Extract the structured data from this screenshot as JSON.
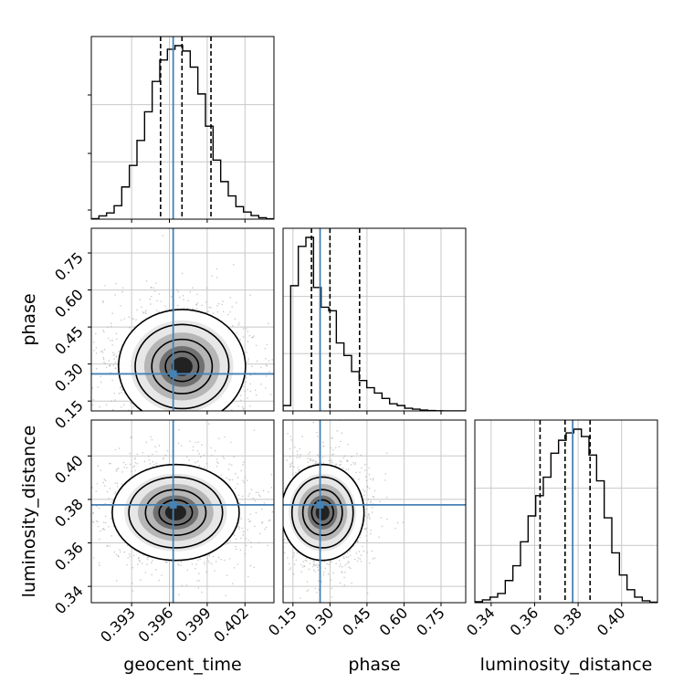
{
  "chart_data": {
    "type": "corner",
    "parameters": [
      "geocent_time",
      "phase",
      "luminosity_distance"
    ],
    "truths": {
      "geocent_time": 0.3963,
      "phase": 0.26,
      "luminosity_distance": 0.3775
    },
    "truth_color": "#4682b4",
    "ranges": {
      "geocent_time": [
        0.3898,
        0.4043
      ],
      "phase": [
        0.11,
        0.85
      ],
      "luminosity_distance": [
        0.3325,
        0.4165
      ]
    },
    "ticks": {
      "geocent_time": [
        0.393,
        0.396,
        0.399,
        0.402
      ],
      "phase": [
        0.15,
        0.3,
        0.45,
        0.6,
        0.75
      ],
      "luminosity_distance": [
        0.34,
        0.36,
        0.38,
        0.4
      ]
    },
    "tick_labels": {
      "geocent_time": [
        "0.393",
        "0.396",
        "0.399",
        "0.402"
      ],
      "phase": [
        "0.15",
        "0.30",
        "0.45",
        "0.60",
        "0.75"
      ],
      "luminosity_distance": [
        "0.34",
        "0.36",
        "0.38",
        "0.40"
      ]
    },
    "xlabels": [
      "geocent_time",
      "phase",
      "luminosity_distance"
    ],
    "ylabels": [
      "",
      "phase",
      "luminosity_distance"
    ],
    "quantiles": {
      "geocent_time": [
        0.3953,
        0.397,
        0.3993
      ],
      "phase": [
        0.225,
        0.3,
        0.42
      ],
      "luminosity_distance": [
        0.3625,
        0.374,
        0.3855
      ]
    },
    "marginals": {
      "geocent_time": [
        0.3,
        1.8,
        3.5,
        7.5,
        18,
        30,
        44,
        60,
        77,
        89,
        95,
        97,
        94,
        85,
        70,
        52,
        33,
        21,
        13,
        7,
        4,
        2,
        0.8,
        0.2
      ],
      "phase": [
        3,
        70,
        92,
        97,
        69,
        58,
        56,
        38,
        31,
        22,
        17,
        13,
        10,
        7,
        4,
        3,
        1.5,
        1,
        0.5,
        0.2,
        0.1,
        0,
        0,
        0
      ],
      "luminosity_distance": [
        0.5,
        1.5,
        3,
        5,
        12,
        20,
        33,
        47,
        58,
        68,
        81,
        88,
        92,
        94,
        90,
        80,
        66,
        46,
        27,
        15,
        7,
        3,
        1,
        0.3
      ]
    },
    "density_2d": [
      {
        "x": "geocent_time",
        "y": "phase",
        "center": [
          0.397,
          0.29
        ],
        "spread": [
          0.0024,
          0.11
        ]
      },
      {
        "x": "geocent_time",
        "y": "luminosity_distance",
        "center": [
          0.3965,
          0.374
        ],
        "spread": [
          0.0024,
          0.0105
        ]
      },
      {
        "x": "phase",
        "y": "luminosity_distance",
        "center": [
          0.27,
          0.374
        ],
        "spread": [
          0.08,
          0.0105
        ]
      }
    ]
  }
}
